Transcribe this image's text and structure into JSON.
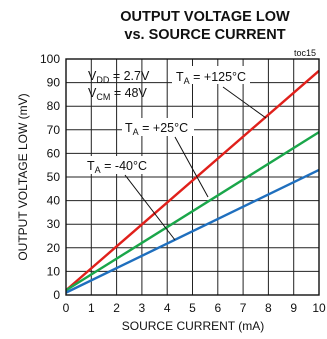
{
  "chart_data": {
    "type": "line",
    "title_line1": "OUTPUT VOLTAGE LOW",
    "title_line2": "vs. SOURCE CURRENT",
    "corner_label": "toc15",
    "xlabel": "SOURCE CURRENT (mA)",
    "ylabel": "OUTPUT VOLTAGE LOW (mV)",
    "xlim": [
      0,
      10
    ],
    "ylim": [
      0,
      100
    ],
    "xticks": [
      0,
      1,
      2,
      3,
      4,
      5,
      6,
      7,
      8,
      9,
      10
    ],
    "yticks": [
      0,
      10,
      20,
      30,
      40,
      50,
      60,
      70,
      80,
      90,
      100
    ],
    "grid": true,
    "conditions": {
      "vdd_main": "V",
      "vdd_sub": "DD",
      "vdd_val": " = 2.7V",
      "vcm_main": "V",
      "vcm_sub": "CM",
      "vcm_val": " = 48V"
    },
    "series": [
      {
        "name": "T",
        "name_sub": "A",
        "name_val": " = +125°C",
        "color": "#e0201b",
        "x": [
          0,
          10
        ],
        "y": [
          2,
          95
        ]
      },
      {
        "name": "T",
        "name_sub": "A",
        "name_val": " = +25°C",
        "color": "#1aa64a",
        "x": [
          0,
          10
        ],
        "y": [
          2,
          69
        ]
      },
      {
        "name": "T",
        "name_sub": "A",
        "name_val": " = -40°C",
        "color": "#1f6fbe",
        "x": [
          0,
          10
        ],
        "y": [
          1,
          53
        ]
      }
    ]
  }
}
